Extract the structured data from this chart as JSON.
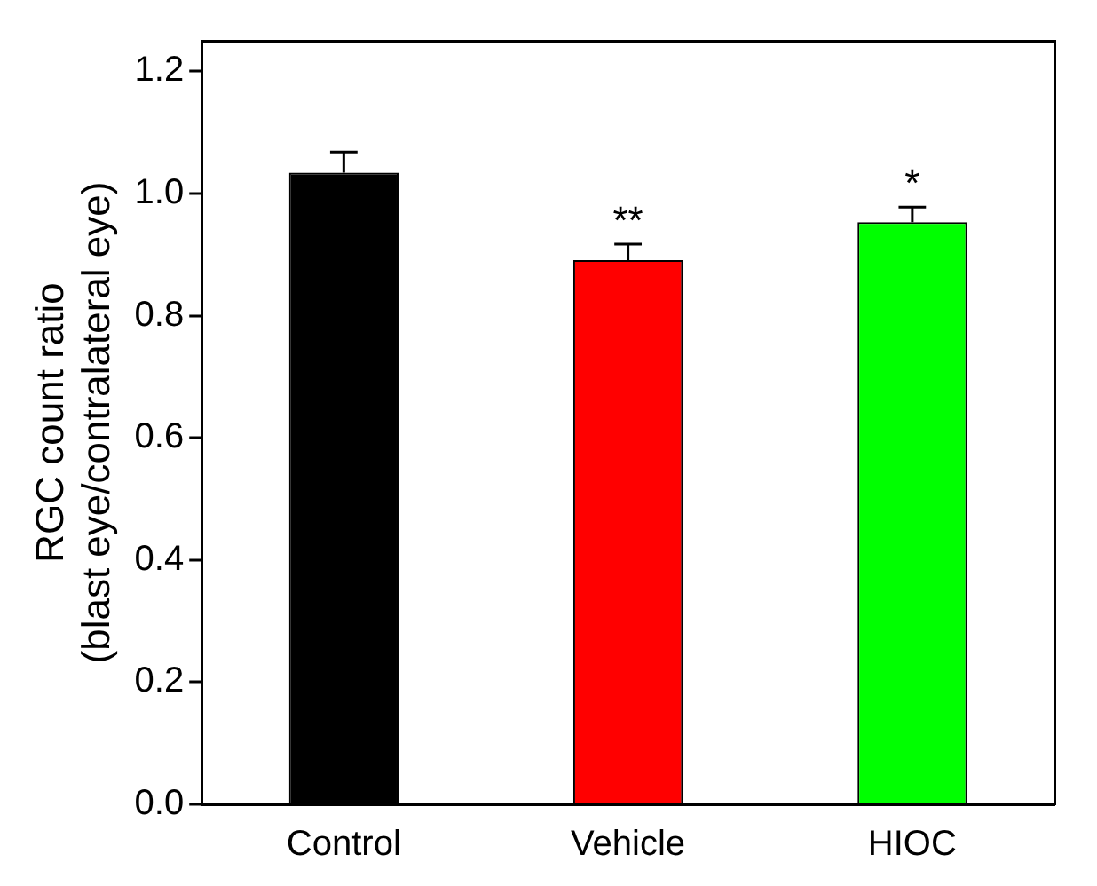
{
  "chart_data": {
    "type": "bar",
    "ylabel": "RGC count ratio\n(blast eye/contralateral eye)",
    "categories": [
      "Control",
      "Vehicle",
      "HIOC"
    ],
    "values": [
      1.034,
      0.891,
      0.953
    ],
    "colors": [
      "#000000",
      "#ff0000",
      "#00ff00"
    ],
    "errors": [
      [
        1.034,
        1.068
      ],
      [
        0.891,
        0.917
      ],
      [
        0.953,
        0.978
      ]
    ],
    "ylim": [
      0,
      1.25
    ],
    "yticks": [
      {
        "value": 0,
        "label": "0.0"
      },
      {
        "value": 0.2,
        "label": "0.2"
      },
      {
        "value": 0.4,
        "label": "0.4"
      },
      {
        "value": 0.6,
        "label": "0.6"
      },
      {
        "value": 0.8,
        "label": "0.8"
      },
      {
        "value": 1,
        "label": "1.0"
      },
      {
        "value": 1.2,
        "label": "1.2"
      }
    ],
    "annotations": [
      "**",
      "*"
    ],
    "grid": false,
    "legend": false
  }
}
